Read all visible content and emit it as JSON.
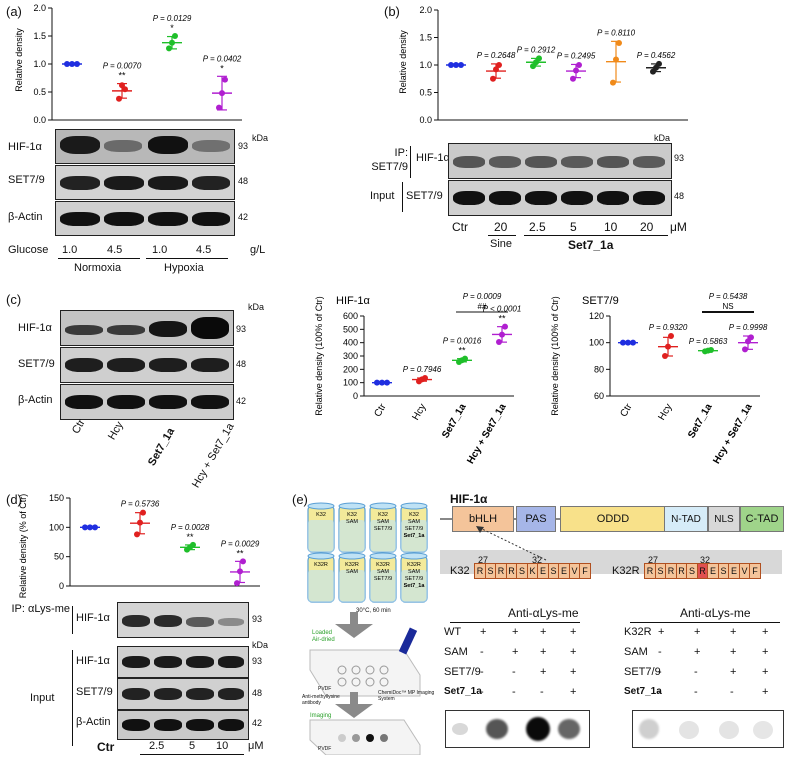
{
  "panel_labels": {
    "a": "(a)",
    "b": "(b)",
    "c": "(c)",
    "d": "(d)",
    "e": "(e)"
  },
  "common": {
    "kda": "kDa",
    "ylabel_rd": "Relative density",
    "ylabel_pct": "Relative density (100% of Ctr)",
    "ylabel_pct_d": "Relative density (% of Ctr)",
    "um": "μM"
  },
  "panel_a": {
    "rows": [
      {
        "label": "HIF-1α",
        "kda": "93"
      },
      {
        "label": "SET7/9",
        "kda": "48"
      },
      {
        "label": "β-Actin",
        "kda": "42"
      }
    ],
    "glucose_label": "Glucose",
    "glucose_values": [
      "1.0",
      "4.5",
      "1.0",
      "4.5"
    ],
    "glucose_unit": "g/L",
    "groups": [
      "Normoxia",
      "Hypoxia"
    ]
  },
  "panel_b": {
    "ip_label": "IP: SET7/9",
    "input_label": "Input",
    "rows": [
      {
        "label": "HIF-1α",
        "kda": "93"
      },
      {
        "label": "SET7/9",
        "kda": "48"
      }
    ],
    "lanes": [
      "Ctr",
      "20",
      "2.5",
      "5",
      "10",
      "20"
    ],
    "sine": "Sine",
    "drug": "Set7_1a"
  },
  "panel_c": {
    "rows": [
      {
        "label": "HIF-1α",
        "kda": "93"
      },
      {
        "label": "SET7/9",
        "kda": "48"
      },
      {
        "label": "β-Actin",
        "kda": "42"
      }
    ],
    "lanes": [
      "Ctr",
      "Hcy",
      "Set7_1a",
      "Hcy + Set7_1a"
    ]
  },
  "panel_d": {
    "ip_label": "IP: αLys-me",
    "input_label": "Input",
    "rows_ip": [
      {
        "label": "HIF-1α",
        "kda": "93"
      }
    ],
    "rows_input": [
      {
        "label": "HIF-1α",
        "kda": "93"
      },
      {
        "label": "SET7/9",
        "kda": "48"
      },
      {
        "label": "β-Actin",
        "kda": "42"
      }
    ],
    "lanes": [
      "Ctr",
      "2.5",
      "5",
      "10"
    ],
    "drug": "Set7_1a"
  },
  "panel_e": {
    "title": "HIF-1α",
    "domains": [
      "bHLH",
      "PAS",
      "ODDD",
      "N-TAD",
      "NLS",
      "C-TAD"
    ],
    "k32_label": "K32",
    "k32r_label": "K32R",
    "seq_k32": [
      "R",
      "S",
      "R",
      "R",
      "S",
      "K",
      "E",
      "S",
      "E",
      "V",
      "F"
    ],
    "seq_k32r": [
      "R",
      "S",
      "R",
      "R",
      "S",
      "R",
      "E",
      "S",
      "E",
      "V",
      "F"
    ],
    "pos_27": "27",
    "pos_32": "32",
    "tubes_top": [
      [
        "K32"
      ],
      [
        "K32",
        "SAM"
      ],
      [
        "K32",
        "SAM",
        "SET7/9"
      ],
      [
        "K32",
        "SAM",
        "SET7/9",
        "Set7_1a"
      ]
    ],
    "tubes_bottom": [
      [
        "K32R"
      ],
      [
        "K32R",
        "SAM"
      ],
      [
        "K32R",
        "SAM",
        "SET7/9"
      ],
      [
        "K32R",
        "SAM",
        "SET7/9",
        "Set7_1a"
      ]
    ],
    "incubation": "30°C, 60 min",
    "loaded": "Loaded",
    "air_dried": "Air-dried",
    "pvdf": "PVDF",
    "antibody": "Anti-methyllysine antibody",
    "imaging_system": "ChemiDoc™ MP Imaging System",
    "imaging": "Imaging",
    "anti_label": "Anti-αLys-me",
    "left_table": {
      "rows": [
        [
          "WT",
          "+",
          "+",
          "+",
          "+"
        ],
        [
          "SAM",
          "-",
          "+",
          "+",
          "+"
        ],
        [
          "SET7/9",
          "-",
          "-",
          "+",
          "+"
        ],
        [
          "Set7_1a",
          "-",
          "-",
          "-",
          "+"
        ]
      ]
    },
    "right_table": {
      "rows": [
        [
          "K32R",
          "+",
          "+",
          "+",
          "+"
        ],
        [
          "SAM",
          "-",
          "+",
          "+",
          "+"
        ],
        [
          "SET7/9",
          "-",
          "-",
          "+",
          "+"
        ],
        [
          "Set7_1a",
          "-",
          "-",
          "-",
          "+"
        ]
      ]
    }
  },
  "chart_data": [
    {
      "id": "a",
      "type": "scatter",
      "ylabel": "Relative density",
      "ylim": [
        0,
        2.0
      ],
      "yticks": [
        "0.0",
        "0.5",
        "1.0",
        "1.5",
        "2.0"
      ],
      "series": [
        {
          "color": "#1f2ee0",
          "values": [
            1,
            1,
            1
          ],
          "mean": 1.0,
          "sd": 0.0
        },
        {
          "color": "#e0201f",
          "values": [
            0.38,
            0.62,
            0.55
          ],
          "mean": 0.52,
          "sd": 0.13,
          "p": "P = 0.0070",
          "sig": "**"
        },
        {
          "color": "#1fbf2a",
          "values": [
            1.28,
            1.38,
            1.5
          ],
          "mean": 1.38,
          "sd": 0.11,
          "p": "P = 0.0129",
          "sig": "*"
        },
        {
          "color": "#b01fd0",
          "values": [
            0.22,
            0.48,
            0.72
          ],
          "mean": 0.48,
          "sd": 0.3,
          "p": "P = 0.0402",
          "sig": "*"
        }
      ]
    },
    {
      "id": "b",
      "type": "scatter",
      "ylabel": "Relative density",
      "ylim": [
        0,
        2.0
      ],
      "yticks": [
        "0.0",
        "0.5",
        "1.0",
        "1.5",
        "2.0"
      ],
      "series": [
        {
          "color": "#1f2ee0",
          "values": [
            1,
            1,
            1
          ],
          "mean": 1.0,
          "sd": 0.0
        },
        {
          "color": "#e0201f",
          "values": [
            0.75,
            0.92,
            1.0
          ],
          "mean": 0.89,
          "sd": 0.13,
          "p": "P = 0.2648"
        },
        {
          "color": "#1fbf2a",
          "values": [
            0.98,
            1.05,
            1.12
          ],
          "mean": 1.05,
          "sd": 0.07,
          "p": "P = 0.2912"
        },
        {
          "color": "#b01fd0",
          "values": [
            0.75,
            0.9,
            1.0
          ],
          "mean": 0.89,
          "sd": 0.12,
          "p": "P = 0.2495"
        },
        {
          "color": "#f08a1a",
          "values": [
            0.68,
            1.1,
            1.4
          ],
          "mean": 1.06,
          "sd": 0.37,
          "p": "P = 0.8110"
        },
        {
          "color": "#222222",
          "values": [
            0.88,
            0.95,
            1.02
          ],
          "mean": 0.95,
          "sd": 0.07,
          "p": "P = 0.4562"
        }
      ]
    },
    {
      "id": "c1",
      "type": "scatter",
      "title": "HIF-1α",
      "ylabel": "Relative density (100% of Ctr)",
      "ylim": [
        0,
        600
      ],
      "yticks": [
        "0",
        "100",
        "200",
        "300",
        "400",
        "500",
        "600"
      ],
      "categories": [
        "Ctr",
        "Hcy",
        "Set7_1a",
        "Hcy + Set7_1a"
      ],
      "series": [
        {
          "color": "#1f2ee0",
          "values": [
            100,
            100,
            100
          ],
          "mean": 100,
          "sd": 0
        },
        {
          "color": "#e0201f",
          "values": [
            110,
            125,
            135
          ],
          "mean": 123,
          "sd": 12,
          "p": "P = 0.7946"
        },
        {
          "color": "#1fbf2a",
          "values": [
            255,
            268,
            280
          ],
          "mean": 268,
          "sd": 12,
          "p": "P = 0.0016",
          "sig": "**"
        },
        {
          "color": "#b01fd0",
          "values": [
            405,
            460,
            520
          ],
          "mean": 462,
          "sd": 58,
          "p": "P < 0.0001",
          "sig": "**"
        }
      ],
      "comparison": {
        "p": "P = 0.0009",
        "sig": "##"
      }
    },
    {
      "id": "c2",
      "type": "scatter",
      "title": "SET7/9",
      "ylabel": "Relative density (100% of Ctr)",
      "ylim": [
        60,
        120
      ],
      "yticks": [
        "60",
        "80",
        "100",
        "120"
      ],
      "categories": [
        "Ctr",
        "Hcy",
        "Set7_1a",
        "Hcy + Set7_1a"
      ],
      "series": [
        {
          "color": "#1f2ee0",
          "values": [
            100,
            100,
            100
          ],
          "mean": 100,
          "sd": 0
        },
        {
          "color": "#e0201f",
          "values": [
            90,
            97,
            105
          ],
          "mean": 97,
          "sd": 7,
          "p": "P = 0.9320"
        },
        {
          "color": "#1fbf2a",
          "values": [
            93.5,
            94,
            94.5
          ],
          "mean": 94,
          "sd": 0.5,
          "p": "P = 0.5863"
        },
        {
          "color": "#b01fd0",
          "values": [
            95,
            101,
            104
          ],
          "mean": 100,
          "sd": 5,
          "p": "P = 0.9998"
        }
      ],
      "comparison": {
        "p": "P = 0.5438",
        "sig": "NS"
      }
    },
    {
      "id": "d",
      "type": "scatter",
      "ylabel": "Relative density (% of Ctr)",
      "ylim": [
        0,
        150
      ],
      "yticks": [
        "0",
        "50",
        "100",
        "150"
      ],
      "series": [
        {
          "color": "#1f2ee0",
          "values": [
            100,
            100,
            100
          ],
          "mean": 100,
          "sd": 0
        },
        {
          "color": "#e0201f",
          "values": [
            88,
            108,
            125
          ],
          "mean": 107,
          "sd": 18,
          "p": "P = 0.5736"
        },
        {
          "color": "#1fbf2a",
          "values": [
            62,
            66,
            70
          ],
          "mean": 66,
          "sd": 4,
          "p": "P = 0.0028",
          "sig": "**"
        },
        {
          "color": "#b01fd0",
          "values": [
            5,
            25,
            42
          ],
          "mean": 24,
          "sd": 18,
          "p": "P = 0.0029",
          "sig": "**"
        }
      ]
    }
  ]
}
